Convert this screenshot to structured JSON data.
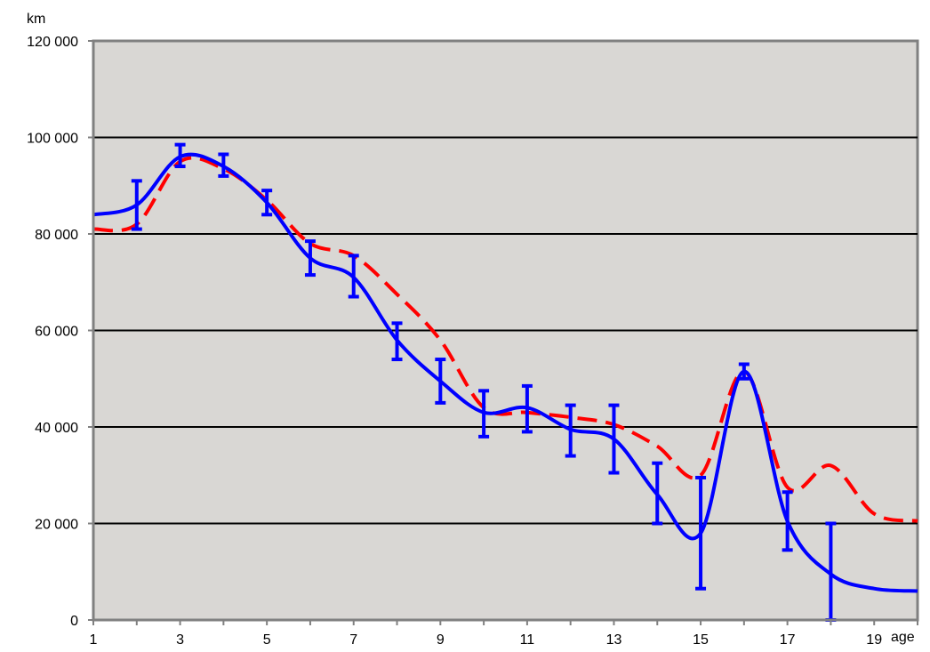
{
  "chart_data": {
    "type": "line",
    "title": "",
    "xlabel": "age",
    "ylabel": "km",
    "xlim": [
      1,
      20
    ],
    "ylim": [
      0,
      120000
    ],
    "x_ticks": [
      1,
      3,
      5,
      7,
      9,
      11,
      13,
      15,
      17,
      19
    ],
    "y_ticks": [
      0,
      20000,
      40000,
      60000,
      80000,
      100000,
      120000
    ],
    "y_tick_labels": [
      "0",
      "20 000",
      "40 000",
      "60 000",
      "80 000",
      "100 000",
      "120 000"
    ],
    "grid": "horizontal",
    "legend": "none",
    "colors": {
      "plot_background": "#d9d7d4",
      "gridline": "#000000",
      "solid_series": "#0000ff",
      "dashed_series": "#ff0000",
      "error_bars": "#0000ff"
    },
    "series": [
      {
        "style": "solid",
        "x": [
          1,
          2,
          3,
          4,
          5,
          6,
          7,
          8,
          9,
          10,
          11,
          12,
          13,
          14,
          15,
          16,
          17,
          18,
          19,
          20
        ],
        "values": [
          84000,
          86000,
          96000,
          94000,
          86500,
          75000,
          71000,
          58000,
          49500,
          43000,
          44000,
          39500,
          37500,
          26000,
          18000,
          51500,
          20500,
          9500,
          6500,
          6000
        ]
      },
      {
        "style": "dashed",
        "x": [
          1,
          2,
          3,
          4,
          5,
          6,
          7,
          8,
          9,
          10,
          11,
          12,
          13,
          14,
          15,
          16,
          17,
          18,
          19,
          20
        ],
        "values": [
          81000,
          82000,
          95000,
          93500,
          87000,
          78000,
          75500,
          67500,
          58000,
          44000,
          43000,
          42000,
          40500,
          36000,
          30000,
          51500,
          27500,
          32000,
          22000,
          20500
        ]
      }
    ],
    "error_bars": [
      {
        "x": 2,
        "low": 81000,
        "high": 91000
      },
      {
        "x": 3,
        "low": 94000,
        "high": 98500
      },
      {
        "x": 4,
        "low": 92000,
        "high": 96500
      },
      {
        "x": 5,
        "low": 84000,
        "high": 89000
      },
      {
        "x": 6,
        "low": 71500,
        "high": 78500
      },
      {
        "x": 7,
        "low": 67000,
        "high": 75500
      },
      {
        "x": 8,
        "low": 54000,
        "high": 61500
      },
      {
        "x": 9,
        "low": 45000,
        "high": 54000
      },
      {
        "x": 10,
        "low": 38000,
        "high": 47500
      },
      {
        "x": 11,
        "low": 39000,
        "high": 48500
      },
      {
        "x": 12,
        "low": 34000,
        "high": 44500
      },
      {
        "x": 13,
        "low": 30500,
        "high": 44500
      },
      {
        "x": 14,
        "low": 20000,
        "high": 32500
      },
      {
        "x": 15,
        "low": 6500,
        "high": 29500
      },
      {
        "x": 16,
        "low": 50000,
        "high": 53000
      },
      {
        "x": 17,
        "low": 14500,
        "high": 26500
      },
      {
        "x": 18,
        "low": 0,
        "high": 20000
      }
    ]
  }
}
